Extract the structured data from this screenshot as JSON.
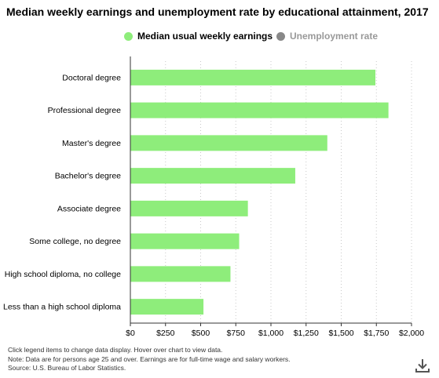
{
  "title": "Median weekly earnings and unemployment rate by educational attainment, 2017",
  "legend": {
    "items": [
      {
        "label": "Median usual weekly earnings",
        "color": "#8EED7B",
        "active": true
      },
      {
        "label": "Unemployment rate",
        "color": "#888888",
        "active": false
      }
    ]
  },
  "chart_data": {
    "type": "bar",
    "orientation": "horizontal",
    "title": "Median weekly earnings and unemployment rate by educational attainment, 2017",
    "categories": [
      "Doctoral degree",
      "Professional degree",
      "Master's degree",
      "Bachelor's degree",
      "Associate degree",
      "Some college, no degree",
      "High school diploma, no college",
      "Less than a high school diploma"
    ],
    "series": [
      {
        "name": "Median usual weekly earnings",
        "values": [
          1743,
          1836,
          1401,
          1173,
          836,
          774,
          712,
          520
        ],
        "color": "#8EED7B"
      }
    ],
    "xlim": [
      0,
      2000
    ],
    "x_ticks": [
      0,
      250,
      500,
      750,
      1000,
      1250,
      1500,
      1750,
      2000
    ],
    "x_tick_labels": [
      "$0",
      "$250",
      "$500",
      "$750",
      "$1,000",
      "$1,250",
      "$1,500",
      "$1,750",
      "$2,000"
    ],
    "grid": true,
    "legend_position": "top"
  },
  "footnotes": [
    "Click legend items to change data display. Hover over chart to view data.",
    "Note: Data are for persons age 25 and over. Earnings are for full-time wage and salary workers.",
    "Source: U.S. Bureau of Labor Statistics."
  ],
  "icons": {
    "download": "download-icon"
  }
}
